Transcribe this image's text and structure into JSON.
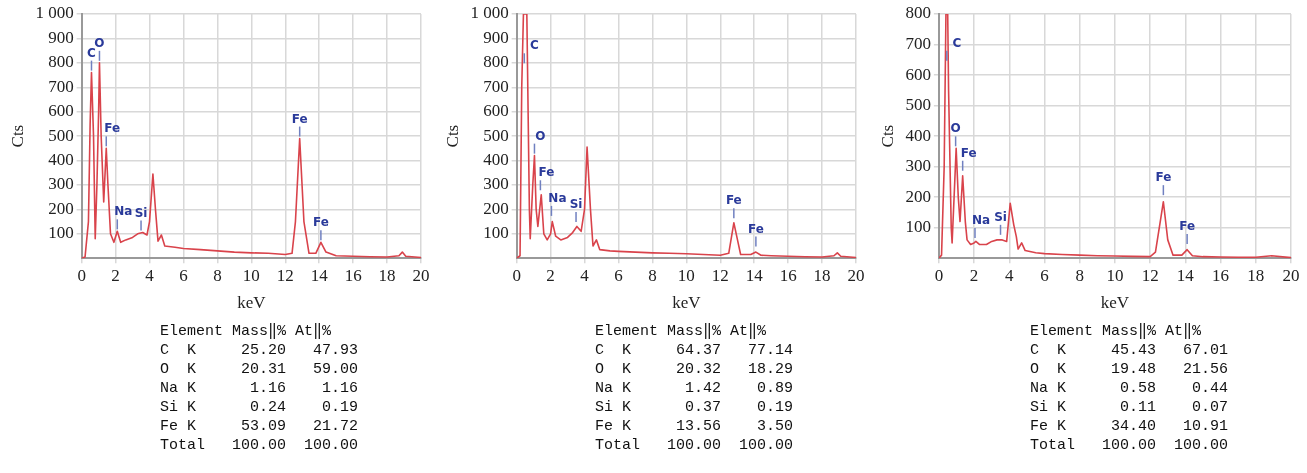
{
  "chart_data": [
    {
      "type": "line",
      "xlabel": "keV",
      "ylabel": "Cts",
      "xlim": [
        0,
        20
      ],
      "xticks": [
        0,
        2,
        4,
        6,
        8,
        10,
        12,
        14,
        16,
        18,
        20
      ],
      "ylim": [
        0,
        1000
      ],
      "yticks": [
        100,
        200,
        300,
        400,
        500,
        600,
        700,
        800,
        900,
        {
          "value": 1000,
          "label": "1 000"
        }
      ],
      "grid": true,
      "series": [
        {
          "color": "#d9434b",
          "x": [
            0,
            0.2,
            0.4,
            0.5,
            0.58,
            0.7,
            0.8,
            0.9,
            1.0,
            1.05,
            1.15,
            1.3,
            1.45,
            1.55,
            1.7,
            1.9,
            2.1,
            2.3,
            2.6,
            3.0,
            3.3,
            3.6,
            3.85,
            4.0,
            4.2,
            4.35,
            4.5,
            4.7,
            4.9,
            5.5,
            6,
            7,
            8,
            9,
            10,
            11,
            12,
            12.4,
            12.6,
            12.85,
            13.1,
            13.4,
            13.8,
            14.1,
            14.4,
            15,
            16,
            17,
            18,
            18.7,
            18.9,
            19.1,
            20
          ],
          "values": [
            0,
            5,
            150,
            550,
            760,
            500,
            80,
            300,
            600,
            800,
            500,
            230,
            450,
            300,
            100,
            65,
            110,
            65,
            75,
            85,
            100,
            105,
            95,
            150,
            345,
            200,
            70,
            95,
            50,
            45,
            40,
            35,
            30,
            25,
            22,
            20,
            15,
            20,
            150,
            490,
            150,
            20,
            20,
            65,
            25,
            10,
            8,
            6,
            5,
            10,
            25,
            8,
            3
          ]
        }
      ],
      "annotations": [
        {
          "text": "C",
          "x": 0.58,
          "y": 760
        },
        {
          "text": "O",
          "x": 1.05,
          "y": 800
        },
        {
          "text": "Fe",
          "x": 1.45,
          "y": 450
        },
        {
          "text": "Na",
          "x": 2.1,
          "y": 110
        },
        {
          "text": "Si",
          "x": 3.5,
          "y": 105
        },
        {
          "text": "Fe",
          "x": 12.85,
          "y": 490
        },
        {
          "text": "Fe",
          "x": 14.1,
          "y": 65
        },
        "Element Mass‖% At‖%",
        "C  K     25.20   47.93",
        "O  K     20.31   59.00",
        "Na K      1.16    1.16",
        "Si K      0.24    0.19",
        "Fe K     53.09   21.72",
        "Total   100.00  100.00"
      ]
    },
    {
      "type": "line",
      "xlabel": "keV",
      "ylabel": "Cts",
      "xlim": [
        0,
        20
      ],
      "xticks": [
        0,
        2,
        4,
        6,
        8,
        10,
        12,
        14,
        16,
        18,
        20
      ],
      "ylim": [
        0,
        1000
      ],
      "yticks": [
        100,
        200,
        300,
        400,
        500,
        600,
        700,
        800,
        900,
        {
          "value": 1000,
          "label": "1 000"
        }
      ],
      "grid": true,
      "series": [
        {
          "color": "#d9434b",
          "x": [
            0,
            0.2,
            0.3,
            0.4,
            0.5,
            0.6,
            0.75,
            0.8,
            0.95,
            1.05,
            1.15,
            1.25,
            1.45,
            1.6,
            1.8,
            2.0,
            2.1,
            2.3,
            2.6,
            3.0,
            3.3,
            3.55,
            3.8,
            4.0,
            4.15,
            4.35,
            4.5,
            4.7,
            4.9,
            5.5,
            6,
            7,
            8,
            9,
            10,
            11,
            12,
            12.5,
            12.8,
            13.0,
            13.2,
            13.8,
            14.1,
            14.4,
            15,
            16,
            17,
            18,
            18.7,
            18.9,
            19.1,
            20
          ],
          "values": [
            0,
            10,
            700,
            1000,
            1000,
            1000,
            200,
            80,
            300,
            420,
            200,
            130,
            260,
            100,
            75,
            100,
            150,
            90,
            75,
            85,
            105,
            130,
            110,
            200,
            455,
            200,
            50,
            75,
            35,
            30,
            28,
            25,
            22,
            20,
            18,
            15,
            12,
            20,
            145,
            80,
            15,
            15,
            25,
            12,
            10,
            8,
            6,
            5,
            10,
            22,
            8,
            3
          ]
        }
      ],
      "annotations": [
        {
          "text": "C",
          "x": 0.45,
          "y": 790
        },
        {
          "text": "O",
          "x": 1.05,
          "y": 420
        },
        {
          "text": "Fe",
          "x": 1.4,
          "y": 270
        },
        {
          "text": "Na",
          "x": 2.05,
          "y": 165
        },
        {
          "text": "Si",
          "x": 3.5,
          "y": 140
        },
        {
          "text": "Fe",
          "x": 12.8,
          "y": 155
        },
        {
          "text": "Fe",
          "x": 14.1,
          "y": 40
        },
        "Element Mass‖% At‖%",
        "C  K     64.37   77.14",
        "O  K     20.32   18.29",
        "Na K      1.42    0.89",
        "Si K      0.37    0.19",
        "Fe K     13.56    3.50",
        "Total   100.00  100.00"
      ]
    },
    {
      "type": "line",
      "xlabel": "keV",
      "ylabel": "Cts",
      "xlim": [
        0,
        20
      ],
      "xticks": [
        0,
        2,
        4,
        6,
        8,
        10,
        12,
        14,
        16,
        18,
        20
      ],
      "ylim": [
        0,
        800
      ],
      "yticks": [
        100,
        200,
        300,
        400,
        500,
        600,
        700,
        800
      ],
      "grid": true,
      "series": [
        {
          "color": "#d9434b",
          "x": [
            0,
            0.15,
            0.3,
            0.4,
            0.5,
            0.55,
            0.7,
            0.75,
            0.9,
            0.98,
            1.1,
            1.2,
            1.35,
            1.5,
            1.6,
            1.8,
            2.0,
            2.1,
            2.3,
            2.7,
            3.0,
            3.3,
            3.6,
            3.85,
            4.05,
            4.25,
            4.4,
            4.5,
            4.7,
            4.9,
            5.5,
            6,
            7,
            8,
            9,
            10,
            11,
            12,
            12.3,
            12.6,
            12.75,
            13.0,
            13.3,
            13.8,
            14.1,
            14.4,
            15,
            16,
            17,
            18,
            18.9,
            20
          ],
          "values": [
            0,
            10,
            300,
            800,
            800,
            550,
            100,
            50,
            250,
            360,
            200,
            120,
            270,
            120,
            60,
            45,
            50,
            55,
            45,
            45,
            55,
            60,
            60,
            55,
            180,
            110,
            70,
            30,
            50,
            25,
            18,
            15,
            12,
            10,
            8,
            7,
            6,
            5,
            20,
            130,
            185,
            60,
            10,
            10,
            28,
            8,
            5,
            4,
            3,
            3,
            8,
            2
          ]
        }
      ],
      "annotations": [
        {
          "text": "C",
          "x": 0.45,
          "y": 640
        },
        {
          "text": "O",
          "x": 0.95,
          "y": 360
        },
        {
          "text": "Fe",
          "x": 1.35,
          "y": 280
        },
        {
          "text": "Na",
          "x": 2.05,
          "y": 60
        },
        {
          "text": "Si",
          "x": 3.5,
          "y": 70
        },
        {
          "text": "Fe",
          "x": 12.75,
          "y": 200
        },
        {
          "text": "Fe",
          "x": 14.1,
          "y": 40
        },
        "Element Mass‖% At‖%",
        "C  K     45.43   67.01",
        "O  K     19.48   21.56",
        "Na K      0.58    0.44",
        "Si K      0.11    0.07",
        "Fe K     34.40   10.91",
        "Total   100.00  100.00"
      ]
    }
  ]
}
